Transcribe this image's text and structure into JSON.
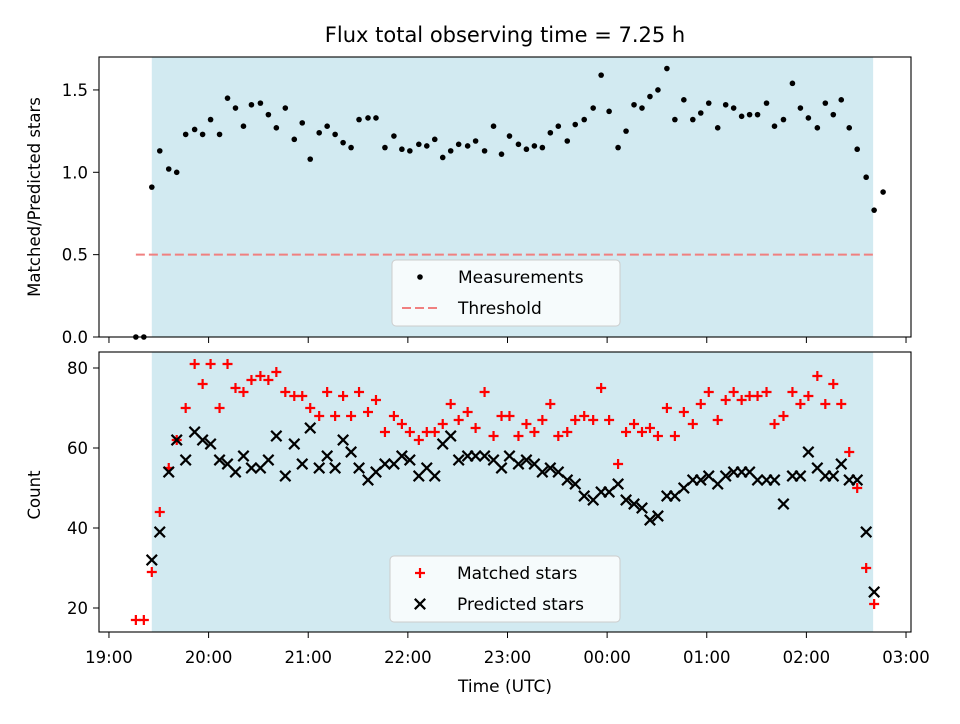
{
  "title": "Flux total observing time = 7.25 h",
  "xlabel": "Time (UTC)",
  "x_ticks": [
    "19:00",
    "20:00",
    "21:00",
    "22:00",
    "23:00",
    "00:00",
    "01:00",
    "02:00",
    "03:00"
  ],
  "colors": {
    "shade": "#add8e6",
    "measurements": "#000000",
    "threshold": "#f08080",
    "matched": "#ff0000",
    "predicted": "#000000"
  },
  "chart_data": [
    {
      "type": "scatter",
      "ylabel": "Matched/Predicted stars",
      "ylim": [
        0,
        1.7
      ],
      "yticks": [
        "0.0",
        "0.5",
        "1.0",
        "1.5"
      ],
      "xlim_hours": [
        18.9,
        27.05
      ],
      "observing_window_hours": [
        19.43,
        26.67
      ],
      "legend": {
        "position": "bottom-center",
        "measurements_label": "Measurements",
        "threshold_label": "Threshold"
      },
      "threshold": {
        "value": 0.5,
        "x_start_hours": 19.27,
        "x_end_hours": 26.67
      },
      "series": [
        {
          "name": "Measurements",
          "points": [
            [
              19.27,
              0.0
            ],
            [
              19.35,
              0.0
            ],
            [
              19.43,
              0.91
            ],
            [
              19.51,
              1.13
            ],
            [
              19.6,
              1.02
            ],
            [
              19.68,
              1.0
            ],
            [
              19.77,
              1.23
            ],
            [
              19.86,
              1.26
            ],
            [
              19.94,
              1.23
            ],
            [
              20.02,
              1.32
            ],
            [
              20.11,
              1.23
            ],
            [
              20.19,
              1.45
            ],
            [
              20.27,
              1.39
            ],
            [
              20.35,
              1.28
            ],
            [
              20.43,
              1.41
            ],
            [
              20.52,
              1.42
            ],
            [
              20.6,
              1.35
            ],
            [
              20.68,
              1.27
            ],
            [
              20.77,
              1.39
            ],
            [
              20.86,
              1.2
            ],
            [
              20.94,
              1.3
            ],
            [
              21.02,
              1.08
            ],
            [
              21.11,
              1.24
            ],
            [
              21.19,
              1.28
            ],
            [
              21.27,
              1.23
            ],
            [
              21.35,
              1.18
            ],
            [
              21.43,
              1.15
            ],
            [
              21.51,
              1.32
            ],
            [
              21.6,
              1.33
            ],
            [
              21.68,
              1.33
            ],
            [
              21.77,
              1.15
            ],
            [
              21.86,
              1.22
            ],
            [
              21.94,
              1.14
            ],
            [
              22.02,
              1.13
            ],
            [
              22.11,
              1.17
            ],
            [
              22.19,
              1.16
            ],
            [
              22.27,
              1.2
            ],
            [
              22.35,
              1.09
            ],
            [
              22.43,
              1.13
            ],
            [
              22.51,
              1.17
            ],
            [
              22.6,
              1.16
            ],
            [
              22.68,
              1.19
            ],
            [
              22.77,
              1.13
            ],
            [
              22.86,
              1.28
            ],
            [
              22.94,
              1.11
            ],
            [
              23.02,
              1.22
            ],
            [
              23.11,
              1.17
            ],
            [
              23.19,
              1.14
            ],
            [
              23.27,
              1.16
            ],
            [
              23.35,
              1.15
            ],
            [
              23.43,
              1.24
            ],
            [
              23.51,
              1.28
            ],
            [
              23.6,
              1.19
            ],
            [
              23.68,
              1.29
            ],
            [
              23.77,
              1.32
            ],
            [
              23.86,
              1.39
            ],
            [
              23.94,
              1.59
            ],
            [
              24.02,
              1.37
            ],
            [
              24.11,
              1.15
            ],
            [
              24.19,
              1.25
            ],
            [
              24.27,
              1.41
            ],
            [
              24.35,
              1.39
            ],
            [
              24.43,
              1.46
            ],
            [
              24.51,
              1.5
            ],
            [
              24.6,
              1.63
            ],
            [
              24.68,
              1.32
            ],
            [
              24.77,
              1.44
            ],
            [
              24.86,
              1.32
            ],
            [
              24.94,
              1.36
            ],
            [
              25.02,
              1.42
            ],
            [
              25.11,
              1.27
            ],
            [
              25.19,
              1.41
            ],
            [
              25.27,
              1.39
            ],
            [
              25.35,
              1.34
            ],
            [
              25.43,
              1.35
            ],
            [
              25.51,
              1.35
            ],
            [
              25.6,
              1.42
            ],
            [
              25.68,
              1.28
            ],
            [
              25.77,
              1.32
            ],
            [
              25.86,
              1.54
            ],
            [
              25.94,
              1.39
            ],
            [
              26.02,
              1.33
            ],
            [
              26.11,
              1.27
            ],
            [
              26.19,
              1.42
            ],
            [
              26.27,
              1.35
            ],
            [
              26.35,
              1.44
            ],
            [
              26.43,
              1.27
            ],
            [
              26.51,
              1.14
            ],
            [
              26.6,
              0.97
            ],
            [
              26.68,
              0.77
            ],
            [
              26.77,
              0.88
            ]
          ]
        }
      ]
    },
    {
      "type": "scatter",
      "ylabel": "Count",
      "ylim": [
        14,
        84
      ],
      "yticks": [
        "20",
        "40",
        "60",
        "80"
      ],
      "xlim_hours": [
        18.9,
        27.05
      ],
      "observing_window_hours": [
        19.43,
        26.67
      ],
      "legend": {
        "position": "bottom-center",
        "matched_label": "Matched stars",
        "predicted_label": "Predicted stars"
      },
      "series": [
        {
          "name": "Matched stars",
          "points": [
            [
              19.27,
              17
            ],
            [
              19.35,
              17
            ],
            [
              19.43,
              29
            ],
            [
              19.51,
              44
            ],
            [
              19.6,
              55
            ],
            [
              19.68,
              62
            ],
            [
              19.77,
              70
            ],
            [
              19.86,
              81
            ],
            [
              19.94,
              76
            ],
            [
              20.02,
              81
            ],
            [
              20.11,
              70
            ],
            [
              20.19,
              81
            ],
            [
              20.27,
              75
            ],
            [
              20.35,
              74
            ],
            [
              20.43,
              77
            ],
            [
              20.52,
              78
            ],
            [
              20.6,
              77
            ],
            [
              20.68,
              79
            ],
            [
              20.77,
              74
            ],
            [
              20.86,
              73
            ],
            [
              20.94,
              73
            ],
            [
              21.02,
              70
            ],
            [
              21.11,
              68
            ],
            [
              21.19,
              74
            ],
            [
              21.27,
              68
            ],
            [
              21.35,
              73
            ],
            [
              21.43,
              68
            ],
            [
              21.51,
              74
            ],
            [
              21.6,
              69
            ],
            [
              21.68,
              72
            ],
            [
              21.77,
              64
            ],
            [
              21.86,
              68
            ],
            [
              21.94,
              66
            ],
            [
              22.02,
              64
            ],
            [
              22.11,
              62
            ],
            [
              22.19,
              64
            ],
            [
              22.27,
              64
            ],
            [
              22.35,
              66
            ],
            [
              22.43,
              71
            ],
            [
              22.51,
              67
            ],
            [
              22.6,
              69
            ],
            [
              22.68,
              65
            ],
            [
              22.77,
              74
            ],
            [
              22.86,
              63
            ],
            [
              22.94,
              68
            ],
            [
              23.02,
              68
            ],
            [
              23.11,
              63
            ],
            [
              23.19,
              66
            ],
            [
              23.27,
              64
            ],
            [
              23.35,
              67
            ],
            [
              23.43,
              71
            ],
            [
              23.51,
              63
            ],
            [
              23.6,
              64
            ],
            [
              23.68,
              67
            ],
            [
              23.77,
              68
            ],
            [
              23.86,
              67
            ],
            [
              23.94,
              75
            ],
            [
              24.02,
              67
            ],
            [
              24.11,
              56
            ],
            [
              24.19,
              64
            ],
            [
              24.27,
              66
            ],
            [
              24.35,
              64
            ],
            [
              24.43,
              65
            ],
            [
              24.51,
              63
            ],
            [
              24.6,
              70
            ],
            [
              24.68,
              63
            ],
            [
              24.77,
              69
            ],
            [
              24.86,
              66
            ],
            [
              24.94,
              71
            ],
            [
              25.02,
              74
            ],
            [
              25.11,
              67
            ],
            [
              25.19,
              72
            ],
            [
              25.27,
              74
            ],
            [
              25.35,
              72
            ],
            [
              25.43,
              73
            ],
            [
              25.51,
              73
            ],
            [
              25.6,
              74
            ],
            [
              25.68,
              66
            ],
            [
              25.77,
              68
            ],
            [
              25.86,
              74
            ],
            [
              25.94,
              71
            ],
            [
              26.02,
              73
            ],
            [
              26.11,
              78
            ],
            [
              26.19,
              71
            ],
            [
              26.27,
              76
            ],
            [
              26.35,
              71
            ],
            [
              26.43,
              59
            ],
            [
              26.51,
              50
            ],
            [
              26.6,
              30
            ],
            [
              26.68,
              21
            ]
          ]
        },
        {
          "name": "Predicted stars",
          "points": [
            [
              19.43,
              32
            ],
            [
              19.51,
              39
            ],
            [
              19.6,
              54
            ],
            [
              19.68,
              62
            ],
            [
              19.77,
              57
            ],
            [
              19.86,
              64
            ],
            [
              19.94,
              62
            ],
            [
              20.02,
              61
            ],
            [
              20.11,
              57
            ],
            [
              20.19,
              56
            ],
            [
              20.27,
              54
            ],
            [
              20.35,
              58
            ],
            [
              20.43,
              55
            ],
            [
              20.52,
              55
            ],
            [
              20.6,
              57
            ],
            [
              20.68,
              63
            ],
            [
              20.77,
              53
            ],
            [
              20.86,
              61
            ],
            [
              20.94,
              56
            ],
            [
              21.02,
              65
            ],
            [
              21.11,
              55
            ],
            [
              21.19,
              58
            ],
            [
              21.27,
              55
            ],
            [
              21.35,
              62
            ],
            [
              21.43,
              59
            ],
            [
              21.51,
              55
            ],
            [
              21.6,
              52
            ],
            [
              21.68,
              54
            ],
            [
              21.77,
              56
            ],
            [
              21.86,
              56
            ],
            [
              21.94,
              58
            ],
            [
              22.02,
              57
            ],
            [
              22.11,
              53
            ],
            [
              22.19,
              55
            ],
            [
              22.27,
              53
            ],
            [
              22.35,
              61
            ],
            [
              22.43,
              63
            ],
            [
              22.51,
              57
            ],
            [
              22.6,
              58
            ],
            [
              22.68,
              58
            ],
            [
              22.77,
              58
            ],
            [
              22.86,
              57
            ],
            [
              22.94,
              55
            ],
            [
              23.02,
              58
            ],
            [
              23.11,
              56
            ],
            [
              23.19,
              57
            ],
            [
              23.27,
              56
            ],
            [
              23.35,
              54
            ],
            [
              23.43,
              55
            ],
            [
              23.51,
              54
            ],
            [
              23.6,
              52
            ],
            [
              23.68,
              51
            ],
            [
              23.77,
              48
            ],
            [
              23.86,
              47
            ],
            [
              23.94,
              49
            ],
            [
              24.02,
              49
            ],
            [
              24.11,
              51
            ],
            [
              24.19,
              47
            ],
            [
              24.27,
              46
            ],
            [
              24.35,
              45
            ],
            [
              24.43,
              42
            ],
            [
              24.51,
              43
            ],
            [
              24.6,
              48
            ],
            [
              24.68,
              48
            ],
            [
              24.77,
              50
            ],
            [
              24.86,
              52
            ],
            [
              24.94,
              52
            ],
            [
              25.02,
              53
            ],
            [
              25.11,
              51
            ],
            [
              25.19,
              53
            ],
            [
              25.27,
              54
            ],
            [
              25.35,
              54
            ],
            [
              25.43,
              54
            ],
            [
              25.51,
              52
            ],
            [
              25.6,
              52
            ],
            [
              25.68,
              52
            ],
            [
              25.77,
              46
            ],
            [
              25.86,
              53
            ],
            [
              25.94,
              53
            ],
            [
              26.02,
              59
            ],
            [
              26.11,
              55
            ],
            [
              26.19,
              53
            ],
            [
              26.27,
              53
            ],
            [
              26.35,
              56
            ],
            [
              26.43,
              52
            ],
            [
              26.51,
              52
            ],
            [
              26.6,
              39
            ],
            [
              26.68,
              24
            ]
          ]
        }
      ]
    }
  ]
}
